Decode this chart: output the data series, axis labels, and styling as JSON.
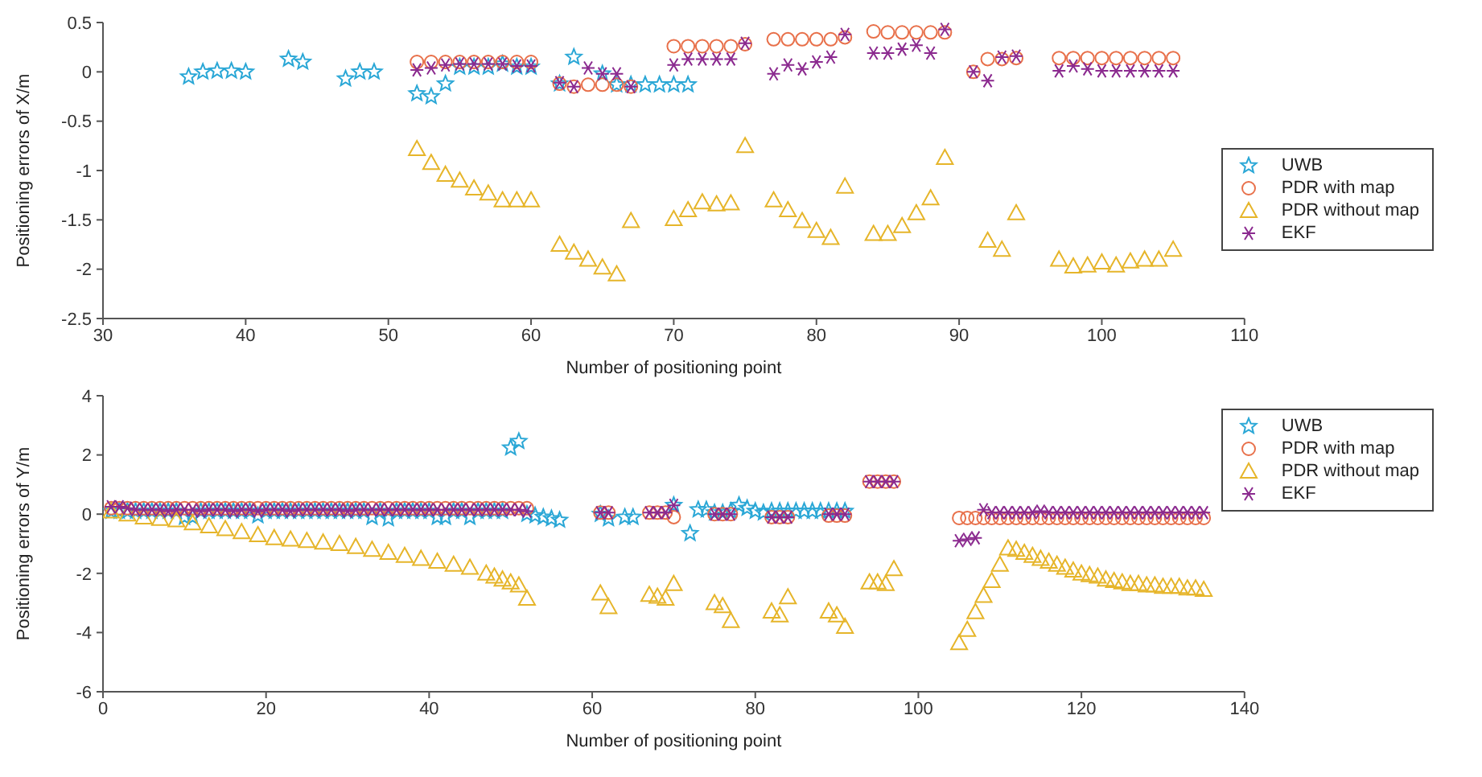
{
  "chart_data": [
    {
      "type": "scatter",
      "xlabel": "Number of positioning point",
      "ylabel": "Positioning errors of X/m",
      "xlim": [
        30,
        110
      ],
      "xticks": [
        30,
        40,
        50,
        60,
        70,
        80,
        90,
        100,
        110
      ],
      "ylim": [
        -2.5,
        0.5
      ],
      "yticks": [
        -2.5,
        -2,
        -1.5,
        -1,
        -0.5,
        0,
        0.5
      ],
      "legend": "right",
      "series": [
        {
          "name": "UWB",
          "color": "#2aa7d6",
          "marker": "star",
          "x": [
            36,
            37,
            38,
            39,
            40,
            43,
            44,
            47,
            48,
            49,
            52,
            53,
            54,
            55,
            56,
            57,
            58,
            59,
            60,
            62,
            63,
            65,
            66,
            67,
            68,
            69,
            70,
            71
          ],
          "values": [
            -0.05,
            0.0,
            0.01,
            0.01,
            0.0,
            0.13,
            0.1,
            -0.07,
            0.0,
            0.0,
            -0.22,
            -0.25,
            -0.12,
            0.05,
            0.05,
            0.05,
            0.08,
            0.05,
            0.05,
            -0.12,
            0.15,
            -0.02,
            -0.13,
            -0.13,
            -0.13,
            -0.13,
            -0.13,
            -0.13
          ]
        },
        {
          "name": "PDR with map",
          "color": "#e8704a",
          "marker": "circle",
          "x": [
            52,
            53,
            54,
            55,
            56,
            57,
            58,
            59,
            60,
            62,
            63,
            64,
            65,
            66,
            67,
            70,
            71,
            72,
            73,
            74,
            75,
            77,
            78,
            79,
            80,
            81,
            82,
            84,
            85,
            86,
            87,
            88,
            89,
            91,
            92,
            93,
            94,
            97,
            98,
            99,
            100,
            101,
            102,
            103,
            104,
            105
          ],
          "values": [
            0.1,
            0.1,
            0.1,
            0.1,
            0.1,
            0.1,
            0.1,
            0.1,
            0.1,
            -0.12,
            -0.15,
            -0.13,
            -0.13,
            -0.13,
            -0.15,
            0.26,
            0.26,
            0.26,
            0.26,
            0.26,
            0.28,
            0.33,
            0.33,
            0.33,
            0.33,
            0.33,
            0.35,
            0.41,
            0.4,
            0.4,
            0.4,
            0.4,
            0.4,
            0.0,
            0.13,
            0.13,
            0.14,
            0.14,
            0.14,
            0.14,
            0.14,
            0.14,
            0.14,
            0.14,
            0.14,
            0.14
          ]
        },
        {
          "name": "PDR without map",
          "color": "#e6b52a",
          "marker": "triangle",
          "x": [
            52,
            53,
            54,
            55,
            56,
            57,
            58,
            59,
            60,
            62,
            63,
            64,
            65,
            66,
            67,
            70,
            71,
            72,
            73,
            74,
            75,
            77,
            78,
            79,
            80,
            81,
            82,
            84,
            85,
            86,
            87,
            88,
            89,
            92,
            93,
            94,
            97,
            98,
            99,
            100,
            101,
            102,
            103,
            104,
            105
          ],
          "values": [
            -0.78,
            -0.92,
            -1.04,
            -1.1,
            -1.18,
            -1.23,
            -1.3,
            -1.3,
            -1.3,
            -1.75,
            -1.83,
            -1.9,
            -1.98,
            -2.05,
            -1.51,
            -1.49,
            -1.4,
            -1.32,
            -1.34,
            -1.33,
            -0.75,
            -1.3,
            -1.4,
            -1.51,
            -1.61,
            -1.68,
            -1.16,
            -1.64,
            -1.64,
            -1.56,
            -1.43,
            -1.28,
            -0.87,
            -1.71,
            -1.8,
            -1.43,
            -1.9,
            -1.97,
            -1.96,
            -1.93,
            -1.96,
            -1.92,
            -1.9,
            -1.9,
            -1.8
          ]
        },
        {
          "name": "EKF",
          "color": "#8b2a8f",
          "marker": "cross",
          "x": [
            52,
            53,
            54,
            55,
            56,
            57,
            58,
            59,
            60,
            62,
            63,
            64,
            65,
            66,
            67,
            70,
            71,
            72,
            73,
            74,
            75,
            77,
            78,
            79,
            80,
            81,
            82,
            84,
            85,
            86,
            87,
            88,
            89,
            91,
            92,
            93,
            94,
            97,
            98,
            99,
            100,
            101,
            102,
            103,
            104,
            105
          ],
          "values": [
            0.02,
            0.04,
            0.07,
            0.08,
            0.08,
            0.08,
            0.08,
            0.06,
            0.06,
            -0.11,
            -0.15,
            0.04,
            -0.02,
            -0.02,
            -0.15,
            0.07,
            0.13,
            0.13,
            0.13,
            0.13,
            0.29,
            -0.02,
            0.07,
            0.03,
            0.1,
            0.15,
            0.38,
            0.19,
            0.19,
            0.23,
            0.27,
            0.19,
            0.43,
            0.0,
            -0.09,
            0.15,
            0.16,
            0.01,
            0.06,
            0.03,
            0.01,
            0.01,
            0.01,
            0.01,
            0.01,
            0.01
          ]
        }
      ]
    },
    {
      "type": "scatter",
      "xlabel": "Number of positioning point",
      "ylabel": "Positioning errors of Y/m",
      "xlim": [
        0,
        140
      ],
      "xticks": [
        0,
        20,
        40,
        60,
        80,
        100,
        120,
        140
      ],
      "ylim": [
        -6,
        4
      ],
      "yticks": [
        -6,
        -4,
        -2,
        0,
        2,
        4
      ],
      "legend": "top right",
      "series": [
        {
          "name": "UWB",
          "color": "#2aa7d6",
          "marker": "star",
          "x": [
            1,
            2,
            3,
            4,
            5,
            6,
            7,
            8,
            9,
            10,
            11,
            12,
            13,
            14,
            15,
            16,
            17,
            18,
            19,
            20,
            21,
            22,
            23,
            24,
            25,
            26,
            27,
            28,
            29,
            30,
            31,
            32,
            33,
            34,
            35,
            36,
            37,
            38,
            39,
            40,
            41,
            42,
            43,
            44,
            45,
            46,
            47,
            48,
            49,
            50,
            51,
            52,
            53,
            54,
            55,
            56,
            61,
            62,
            64,
            65,
            70,
            72,
            73,
            74,
            75,
            76,
            77,
            78,
            79,
            80,
            81,
            82,
            83,
            84,
            85,
            86,
            87,
            88,
            89,
            90,
            91
          ],
          "values": [
            0.1,
            0.1,
            0.1,
            0.1,
            0.1,
            0.1,
            0.1,
            0.1,
            0.1,
            -0.1,
            -0.1,
            0.1,
            0.1,
            0.1,
            0.1,
            0.1,
            0.1,
            0.1,
            -0.05,
            0.1,
            0.1,
            0.1,
            0.1,
            0.1,
            0.1,
            0.1,
            0.1,
            0.1,
            0.1,
            0.1,
            0.1,
            0.1,
            -0.1,
            0.1,
            -0.15,
            0.1,
            0.1,
            0.1,
            0.1,
            0.1,
            -0.1,
            -0.1,
            0.1,
            0.1,
            -0.1,
            0.1,
            0.1,
            0.1,
            0.1,
            2.24,
            2.46,
            0.0,
            -0.05,
            -0.1,
            -0.15,
            -0.2,
            0.0,
            -0.15,
            -0.1,
            -0.1,
            0.3,
            -0.65,
            0.15,
            0.15,
            0.05,
            0.05,
            0.1,
            0.3,
            0.2,
            0.1,
            0.05,
            0.1,
            0.1,
            0.1,
            0.1,
            0.1,
            0.1,
            0.1,
            0.1,
            0.1,
            0.1
          ]
        },
        {
          "name": "PDR with map",
          "color": "#e8704a",
          "marker": "circle",
          "x": [
            1,
            2,
            3,
            4,
            5,
            6,
            7,
            8,
            9,
            10,
            11,
            12,
            13,
            14,
            15,
            16,
            17,
            18,
            19,
            20,
            21,
            22,
            23,
            24,
            25,
            26,
            27,
            28,
            29,
            30,
            31,
            32,
            33,
            34,
            35,
            36,
            37,
            38,
            39,
            40,
            41,
            42,
            43,
            44,
            45,
            46,
            47,
            48,
            49,
            50,
            51,
            52,
            61,
            62,
            67,
            68,
            69,
            70,
            75,
            76,
            77,
            82,
            83,
            84,
            89,
            90,
            91,
            94,
            95,
            96,
            97,
            105,
            106,
            107,
            108,
            109,
            110,
            111,
            112,
            113,
            114,
            115,
            116,
            117,
            118,
            119,
            120,
            121,
            122,
            123,
            124,
            125,
            126,
            127,
            128,
            129,
            130,
            131,
            132,
            133,
            134,
            135
          ],
          "values": [
            0.2,
            0.2,
            0.2,
            0.2,
            0.2,
            0.2,
            0.2,
            0.2,
            0.2,
            0.2,
            0.2,
            0.2,
            0.2,
            0.2,
            0.2,
            0.2,
            0.2,
            0.2,
            0.2,
            0.2,
            0.2,
            0.2,
            0.2,
            0.2,
            0.2,
            0.2,
            0.2,
            0.2,
            0.2,
            0.2,
            0.2,
            0.2,
            0.2,
            0.2,
            0.2,
            0.2,
            0.2,
            0.2,
            0.2,
            0.2,
            0.2,
            0.2,
            0.2,
            0.2,
            0.2,
            0.2,
            0.2,
            0.2,
            0.2,
            0.2,
            0.2,
            0.2,
            0.05,
            0.05,
            0.05,
            0.05,
            0.05,
            -0.1,
            0.0,
            0.0,
            0.0,
            -0.1,
            -0.1,
            -0.1,
            -0.05,
            -0.05,
            -0.05,
            1.1,
            1.1,
            1.1,
            1.1,
            -0.13,
            -0.13,
            -0.13,
            -0.13,
            -0.13,
            -0.13,
            -0.13,
            -0.13,
            -0.13,
            -0.13,
            -0.13,
            -0.13,
            -0.13,
            -0.13,
            -0.13,
            -0.13,
            -0.13,
            -0.13,
            -0.13,
            -0.13,
            -0.13,
            -0.13,
            -0.13,
            -0.13,
            -0.13,
            -0.13,
            -0.13,
            -0.13,
            -0.13,
            -0.13,
            -0.13
          ]
        },
        {
          "name": "PDR without map",
          "color": "#e6b52a",
          "marker": "triangle",
          "x": [
            1,
            3,
            5,
            7,
            9,
            11,
            13,
            15,
            17,
            19,
            21,
            23,
            25,
            27,
            29,
            31,
            33,
            35,
            37,
            39,
            41,
            43,
            45,
            47,
            48,
            49,
            50,
            51,
            52,
            61,
            62,
            67,
            68,
            69,
            70,
            75,
            76,
            77,
            82,
            83,
            84,
            89,
            90,
            91,
            94,
            95,
            96,
            97,
            105,
            106,
            107,
            108,
            109,
            110,
            111,
            112,
            113,
            114,
            115,
            116,
            117,
            118,
            119,
            120,
            121,
            122,
            123,
            124,
            125,
            126,
            127,
            128,
            129,
            130,
            131,
            132,
            133,
            134,
            135
          ],
          "values": [
            0.1,
            0.0,
            -0.1,
            -0.15,
            -0.2,
            -0.3,
            -0.4,
            -0.5,
            -0.6,
            -0.7,
            -0.8,
            -0.85,
            -0.9,
            -0.95,
            -1.0,
            -1.1,
            -1.2,
            -1.3,
            -1.4,
            -1.5,
            -1.6,
            -1.7,
            -1.8,
            -2.0,
            -2.1,
            -2.2,
            -2.3,
            -2.4,
            -2.85,
            -2.67,
            -3.13,
            -2.72,
            -2.78,
            -2.85,
            -2.35,
            -3.0,
            -3.1,
            -3.6,
            -3.28,
            -3.41,
            -2.8,
            -3.28,
            -3.41,
            -3.8,
            -2.3,
            -2.3,
            -2.35,
            -1.85,
            -4.35,
            -3.9,
            -3.3,
            -2.75,
            -2.25,
            -1.7,
            -1.15,
            -1.2,
            -1.3,
            -1.4,
            -1.5,
            -1.6,
            -1.7,
            -1.8,
            -1.9,
            -2.0,
            -2.05,
            -2.1,
            -2.2,
            -2.25,
            -2.3,
            -2.35,
            -2.35,
            -2.4,
            -2.4,
            -2.45,
            -2.45,
            -2.45,
            -2.5,
            -2.5,
            -2.55
          ]
        },
        {
          "name": "EKF",
          "color": "#8b2a8f",
          "marker": "cross",
          "x": [
            1,
            2,
            3,
            4,
            5,
            6,
            7,
            8,
            9,
            10,
            11,
            12,
            13,
            14,
            15,
            16,
            17,
            18,
            19,
            20,
            21,
            22,
            23,
            24,
            25,
            26,
            27,
            28,
            29,
            30,
            31,
            32,
            33,
            34,
            35,
            36,
            37,
            38,
            39,
            40,
            41,
            42,
            43,
            44,
            45,
            46,
            47,
            48,
            49,
            50,
            51,
            52,
            61,
            62,
            67,
            68,
            69,
            70,
            75,
            76,
            77,
            82,
            83,
            84,
            89,
            90,
            91,
            94,
            95,
            96,
            97,
            105,
            106,
            107,
            108,
            109,
            110,
            111,
            112,
            113,
            114,
            115,
            116,
            117,
            118,
            119,
            120,
            121,
            122,
            123,
            124,
            125,
            126,
            127,
            128,
            129,
            130,
            131,
            132,
            133,
            134,
            135
          ],
          "values": [
            0.25,
            0.25,
            0.2,
            0.15,
            0.15,
            0.15,
            0.15,
            0.1,
            0.15,
            0.15,
            0.15,
            0.1,
            0.15,
            0.15,
            0.15,
            0.1,
            0.15,
            0.15,
            0.1,
            0.15,
            0.15,
            0.15,
            0.1,
            0.15,
            0.15,
            0.15,
            0.15,
            0.15,
            0.15,
            0.1,
            0.15,
            0.15,
            0.15,
            0.15,
            0.15,
            0.15,
            0.15,
            0.15,
            0.15,
            0.15,
            0.15,
            0.15,
            0.15,
            0.15,
            0.15,
            0.15,
            0.15,
            0.15,
            0.15,
            0.15,
            0.15,
            0.1,
            0.05,
            0.05,
            0.05,
            0.05,
            0.05,
            0.3,
            0.0,
            0.0,
            0.0,
            -0.1,
            -0.1,
            -0.1,
            0.0,
            0.0,
            0.0,
            1.1,
            1.1,
            1.1,
            1.1,
            -0.9,
            -0.85,
            -0.8,
            0.15,
            0.05,
            0.05,
            0.05,
            0.05,
            0.05,
            0.05,
            0.1,
            0.05,
            0.05,
            0.05,
            0.05,
            0.05,
            0.05,
            0.05,
            0.05,
            0.05,
            0.05,
            0.05,
            0.05,
            0.05,
            0.05,
            0.05,
            0.05,
            0.05,
            0.05,
            0.05,
            0.05
          ]
        }
      ]
    }
  ]
}
